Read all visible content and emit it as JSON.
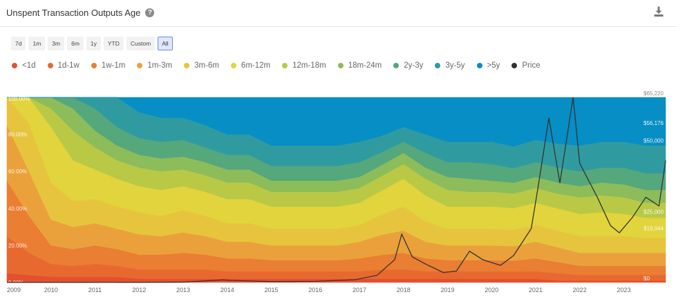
{
  "header": {
    "title": "Unspent Transaction Outputs Age",
    "help_icon": "question-circle-icon",
    "download_icon": "download-icon"
  },
  "ranges": [
    {
      "label": "7d",
      "active": false
    },
    {
      "label": "1m",
      "active": false
    },
    {
      "label": "3m",
      "active": false
    },
    {
      "label": "6m",
      "active": false
    },
    {
      "label": "1y",
      "active": false
    },
    {
      "label": "YTD",
      "active": false
    },
    {
      "label": "Custom",
      "active": false
    },
    {
      "label": "All",
      "active": true
    }
  ],
  "chart_data": {
    "type": "area",
    "stacked": "percent",
    "x": [
      2009,
      2009.5,
      2010,
      2010.5,
      2011,
      2011.5,
      2012,
      2012.5,
      2013,
      2013.5,
      2014,
      2014.5,
      2015,
      2015.5,
      2016,
      2016.5,
      2017,
      2017.5,
      2018,
      2018.5,
      2019,
      2019.5,
      2020,
      2020.5,
      2021,
      2021.5,
      2022,
      2022.5,
      2023,
      2023.5,
      2023.95
    ],
    "x_ticks": [
      "2009",
      "2010",
      "2011",
      "2012",
      "2013",
      "2014",
      "2015",
      "2016",
      "2017",
      "2018",
      "2019",
      "2020",
      "2021",
      "2022",
      "2023"
    ],
    "y_ticks": [
      "0.00%",
      "20.00%",
      "40.00%",
      "60.00%",
      "80.00%",
      "100.00%"
    ],
    "price_ticks": [
      "$0",
      "$19,044",
      "$25,000",
      "$50,000",
      "$56,176",
      "$65,220"
    ],
    "series": [
      {
        "name": "<1d",
        "color": "#e3502e",
        "values": [
          5,
          4,
          3,
          3,
          3,
          3,
          2,
          2,
          2,
          2,
          2,
          2,
          2,
          2,
          2,
          2,
          2,
          2,
          2,
          2,
          2,
          2,
          2,
          2,
          2,
          1,
          1,
          1,
          1,
          1,
          1
        ]
      },
      {
        "name": "1d-1w",
        "color": "#e8692f",
        "values": [
          20,
          12,
          7,
          6,
          7,
          6,
          5,
          5,
          5,
          5,
          4,
          4,
          4,
          4,
          4,
          4,
          4,
          5,
          5,
          4,
          4,
          4,
          4,
          4,
          4,
          4,
          3,
          3,
          3,
          3,
          3
        ]
      },
      {
        "name": "1w-1m",
        "color": "#ea7e32",
        "values": [
          30,
          20,
          10,
          9,
          10,
          9,
          8,
          8,
          9,
          8,
          7,
          7,
          6,
          6,
          6,
          6,
          7,
          8,
          9,
          7,
          6,
          6,
          6,
          6,
          7,
          6,
          5,
          5,
          5,
          5,
          5
        ]
      },
      {
        "name": "1m-3m",
        "color": "#eaa13b",
        "values": [
          30,
          24,
          14,
          12,
          12,
          11,
          11,
          10,
          11,
          10,
          9,
          9,
          8,
          8,
          8,
          8,
          9,
          11,
          12,
          9,
          8,
          8,
          8,
          8,
          9,
          8,
          7,
          7,
          7,
          7,
          7
        ]
      },
      {
        "name": "3m-6m",
        "color": "#e7c43d",
        "values": [
          15,
          26,
          20,
          14,
          13,
          12,
          12,
          11,
          12,
          11,
          10,
          10,
          9,
          9,
          9,
          9,
          9,
          11,
          13,
          11,
          9,
          9,
          9,
          9,
          9,
          9,
          9,
          9,
          9,
          8,
          8
        ]
      },
      {
        "name": "6m-12m",
        "color": "#e2d43c",
        "values": [
          0,
          14,
          30,
          22,
          16,
          15,
          14,
          14,
          13,
          13,
          13,
          13,
          12,
          12,
          12,
          12,
          12,
          13,
          15,
          14,
          12,
          12,
          12,
          12,
          12,
          12,
          12,
          13,
          12,
          11,
          11
        ]
      },
      {
        "name": "12m-18m",
        "color": "#b9c946",
        "values": [
          0,
          0,
          10,
          16,
          12,
          10,
          10,
          10,
          9,
          9,
          9,
          9,
          8,
          8,
          8,
          8,
          8,
          8,
          8,
          9,
          9,
          8,
          8,
          8,
          8,
          8,
          9,
          9,
          9,
          8,
          8
        ]
      },
      {
        "name": "18m-24m",
        "color": "#8dbc5b",
        "values": [
          0,
          0,
          6,
          12,
          9,
          8,
          7,
          7,
          7,
          7,
          7,
          7,
          6,
          6,
          6,
          6,
          6,
          6,
          6,
          6,
          7,
          7,
          6,
          6,
          6,
          6,
          6,
          7,
          7,
          7,
          7
        ]
      },
      {
        "name": "2y-3y",
        "color": "#55a77c",
        "values": [
          0,
          0,
          0,
          6,
          12,
          10,
          9,
          9,
          9,
          8,
          8,
          8,
          8,
          8,
          8,
          8,
          8,
          7,
          6,
          8,
          8,
          9,
          9,
          8,
          8,
          8,
          8,
          8,
          9,
          9,
          9
        ]
      },
      {
        "name": "3y-5y",
        "color": "#2f9ba1",
        "values": [
          0,
          0,
          0,
          0,
          6,
          16,
          14,
          13,
          12,
          12,
          11,
          11,
          11,
          11,
          11,
          11,
          11,
          9,
          8,
          10,
          11,
          11,
          12,
          12,
          12,
          13,
          14,
          14,
          14,
          15,
          15
        ]
      },
      {
        "name": ">5y",
        "color": "#078ec4",
        "values": [
          0,
          0,
          0,
          0,
          0,
          0,
          8,
          11,
          11,
          15,
          20,
          20,
          26,
          26,
          26,
          26,
          24,
          21,
          16,
          20,
          24,
          24,
          24,
          27,
          23,
          25,
          26,
          24,
          24,
          26,
          26
        ]
      }
    ],
    "price": {
      "name": "Price",
      "color": "#333333",
      "x": [
        2009,
        2010.5,
        2011.4,
        2011.6,
        2012,
        2013,
        2013.9,
        2014.1,
        2015,
        2016,
        2016.9,
        2017.4,
        2017.8,
        2017.96,
        2018.2,
        2018.5,
        2018.9,
        2019.2,
        2019.5,
        2019.8,
        2020.2,
        2020.5,
        2020.9,
        2021.05,
        2021.3,
        2021.55,
        2021.85,
        2022.0,
        2022.4,
        2022.7,
        2022.9,
        2023.2,
        2023.5,
        2023.8,
        2023.95
      ],
      "values": [
        0,
        0,
        15,
        5,
        6,
        100,
        900,
        700,
        300,
        400,
        950,
        2500,
        8000,
        17000,
        9000,
        6500,
        3500,
        4000,
        11000,
        8000,
        6000,
        9500,
        19000,
        33000,
        58000,
        35000,
        65220,
        42000,
        30000,
        20000,
        17500,
        23000,
        30000,
        27000,
        43000
      ]
    },
    "ylim": [
      0,
      100
    ],
    "price_ylim": [
      0,
      65220
    ],
    "grid": false,
    "legend_position": "top-left"
  }
}
